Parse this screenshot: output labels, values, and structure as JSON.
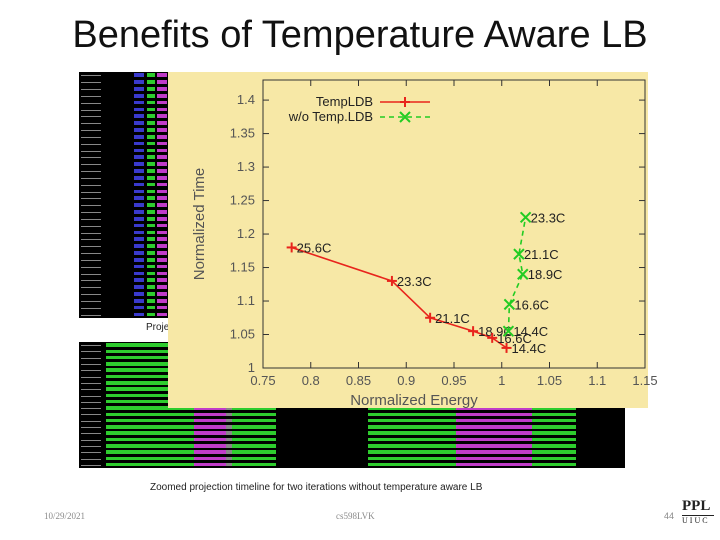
{
  "slide": {
    "title": "Benefits of Temperature Aware LB",
    "projection_label": "Proje",
    "caption": "Zoomed projection timeline for two iterations without temperature aware LB",
    "date": "10/29/2021",
    "course": "cs598LVK",
    "page_number": "44",
    "logo": {
      "top": "PPL",
      "bottom": "UIUC"
    }
  },
  "colors": {
    "chart_background": "#f7e8a6",
    "temp_ldb": "#e8241c",
    "without_temp_ldb": "#22cc22",
    "timeline_green": "#2ecc2e",
    "timeline_magenta": "#c03cc8",
    "timeline_blue": "#3a3acc"
  },
  "chart_data": {
    "type": "line",
    "xlabel": "Normalized Energy",
    "ylabel": "Normalized Time",
    "xlim": [
      0.75,
      1.15
    ],
    "ylim": [
      1.0,
      1.43
    ],
    "xticks": [
      "0.75",
      "0.8",
      "0.85",
      "0.9",
      "0.95",
      "1",
      "1.05",
      "1.1",
      "1.15"
    ],
    "yticks": [
      "1",
      "1.05",
      "1.1",
      "1.15",
      "1.2",
      "1.25",
      "1.3",
      "1.35",
      "1.4"
    ],
    "grid": false,
    "legend_position": "top-left",
    "series": [
      {
        "name": "TempLDB",
        "marker": "+",
        "line_style": "solid",
        "points": [
          {
            "x": 0.78,
            "y": 1.18,
            "label": "25.6C"
          },
          {
            "x": 0.885,
            "y": 1.13,
            "label": "23.3C"
          },
          {
            "x": 0.925,
            "y": 1.075,
            "label": "21.1C"
          },
          {
            "x": 0.97,
            "y": 1.055,
            "label": "18.9C"
          },
          {
            "x": 0.99,
            "y": 1.045,
            "label": "16.6C"
          },
          {
            "x": 1.005,
            "y": 1.03,
            "label": "14.4C"
          }
        ]
      },
      {
        "name": "w/o Temp.LDB",
        "marker": "x",
        "line_style": "dashed",
        "points": [
          {
            "x": 1.007,
            "y": 1.055,
            "label": "14.4C"
          },
          {
            "x": 1.008,
            "y": 1.095,
            "label": "16.6C"
          },
          {
            "x": 1.022,
            "y": 1.14,
            "label": "18.9C"
          },
          {
            "x": 1.018,
            "y": 1.17,
            "label": "21.1C"
          },
          {
            "x": 1.025,
            "y": 1.225,
            "label": "23.3C"
          }
        ]
      }
    ]
  }
}
